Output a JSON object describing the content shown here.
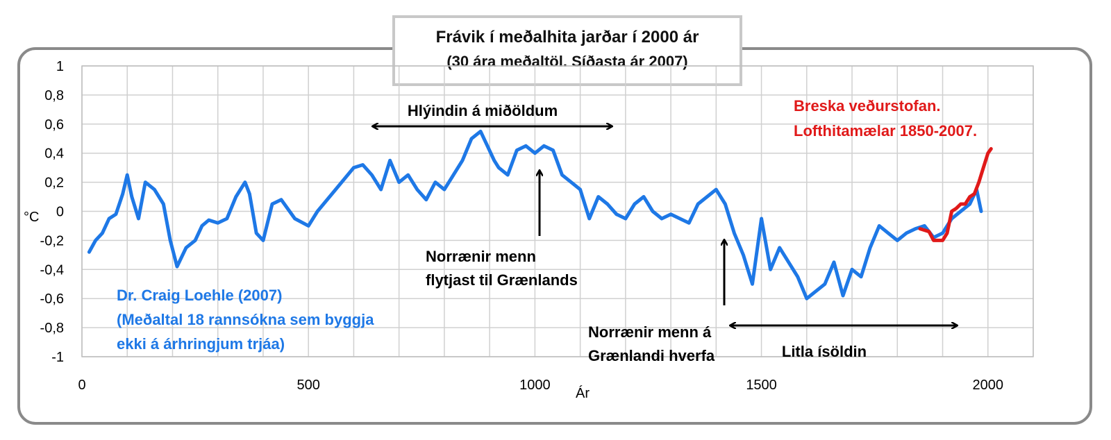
{
  "chart_data": {
    "type": "line",
    "title": "Frávik í meðalhita jarðar í 2000 ár",
    "subtitle": "(30 ára meðaltöl. Síðasta ár 2007)",
    "xlabel": "Ár",
    "ylabel": "°C",
    "xlim": [
      0,
      2100
    ],
    "ylim": [
      -1,
      1
    ],
    "grid": true,
    "x_ticks": [
      "0",
      "500",
      "1000",
      "1500",
      "2000"
    ],
    "y_ticks": [
      "1",
      "0,8",
      "0,6",
      "0,4",
      "0,2",
      "0",
      "-0,2",
      "-0,4",
      "-0,6",
      "-0,8",
      "-1"
    ],
    "series": [
      {
        "name": "Dr. Craig Loehle (2007)",
        "color": "#1e78e6",
        "x": [
          16,
          30,
          45,
          60,
          75,
          90,
          100,
          110,
          125,
          140,
          160,
          180,
          195,
          210,
          230,
          250,
          265,
          280,
          300,
          320,
          340,
          360,
          370,
          385,
          400,
          420,
          440,
          470,
          500,
          520,
          560,
          600,
          620,
          640,
          660,
          680,
          700,
          720,
          740,
          760,
          780,
          800,
          820,
          840,
          860,
          880,
          895,
          910,
          920,
          940,
          960,
          980,
          1000,
          1020,
          1040,
          1060,
          1080,
          1100,
          1120,
          1140,
          1160,
          1180,
          1200,
          1220,
          1240,
          1260,
          1280,
          1300,
          1320,
          1340,
          1360,
          1380,
          1400,
          1420,
          1440,
          1460,
          1480,
          1500,
          1520,
          1540,
          1560,
          1580,
          1600,
          1620,
          1640,
          1660,
          1680,
          1700,
          1720,
          1740,
          1760,
          1780,
          1800,
          1820,
          1840,
          1860,
          1880,
          1900,
          1920,
          1940,
          1960,
          1975,
          1985
        ],
        "y": [
          -0.28,
          -0.2,
          -0.15,
          -0.05,
          -0.02,
          0.12,
          0.25,
          0.1,
          -0.05,
          0.2,
          0.15,
          0.05,
          -0.2,
          -0.38,
          -0.25,
          -0.2,
          -0.1,
          -0.06,
          -0.08,
          -0.05,
          0.1,
          0.2,
          0.12,
          -0.15,
          -0.2,
          0.05,
          0.08,
          -0.05,
          -0.1,
          0.0,
          0.15,
          0.3,
          0.32,
          0.25,
          0.15,
          0.35,
          0.2,
          0.25,
          0.15,
          0.08,
          0.2,
          0.15,
          0.25,
          0.35,
          0.5,
          0.55,
          0.45,
          0.35,
          0.3,
          0.25,
          0.42,
          0.45,
          0.4,
          0.45,
          0.42,
          0.25,
          0.2,
          0.15,
          -0.05,
          0.1,
          0.05,
          -0.02,
          -0.05,
          0.05,
          0.1,
          0.0,
          -0.05,
          -0.02,
          -0.05,
          -0.08,
          0.05,
          0.1,
          0.15,
          0.05,
          -0.15,
          -0.3,
          -0.5,
          -0.05,
          -0.4,
          -0.25,
          -0.35,
          -0.45,
          -0.6,
          -0.55,
          -0.5,
          -0.35,
          -0.58,
          -0.4,
          -0.45,
          -0.25,
          -0.1,
          -0.15,
          -0.2,
          -0.15,
          -0.12,
          -0.1,
          -0.18,
          -0.15,
          -0.05,
          0.0,
          0.05,
          0.15,
          0.0
        ]
      },
      {
        "name": "Breska veðurstofan",
        "color": "#e01919",
        "x": [
          1850,
          1870,
          1880,
          1890,
          1900,
          1910,
          1920,
          1930,
          1940,
          1950,
          1960,
          1970,
          1980,
          1990,
          2000,
          2007
        ],
        "y": [
          -0.12,
          -0.14,
          -0.2,
          -0.2,
          -0.2,
          -0.15,
          0.0,
          0.02,
          0.05,
          0.05,
          0.1,
          0.12,
          0.2,
          0.3,
          0.4,
          0.43
        ]
      }
    ],
    "annotations": {
      "medieval": "Hlýindin á miðöldum",
      "norse_arrive_1": "Norrænir menn",
      "norse_arrive_2": "flytjast til Grænlands",
      "norse_vanish_1": "Norrænir menn á",
      "norse_vanish_2": "Grænlandi hverfa",
      "little_ice_age": "Litla ísöldin",
      "met_office_1": "Breska veðurstofan.",
      "met_office_2": "Lofthitamælar 1850-2007.",
      "loehle_1": "Dr. Craig Loehle (2007)",
      "loehle_2": "(Meðaltal 18 rannsókna sem byggja",
      "loehle_3": "ekki á árhringjum trjáa)"
    }
  }
}
